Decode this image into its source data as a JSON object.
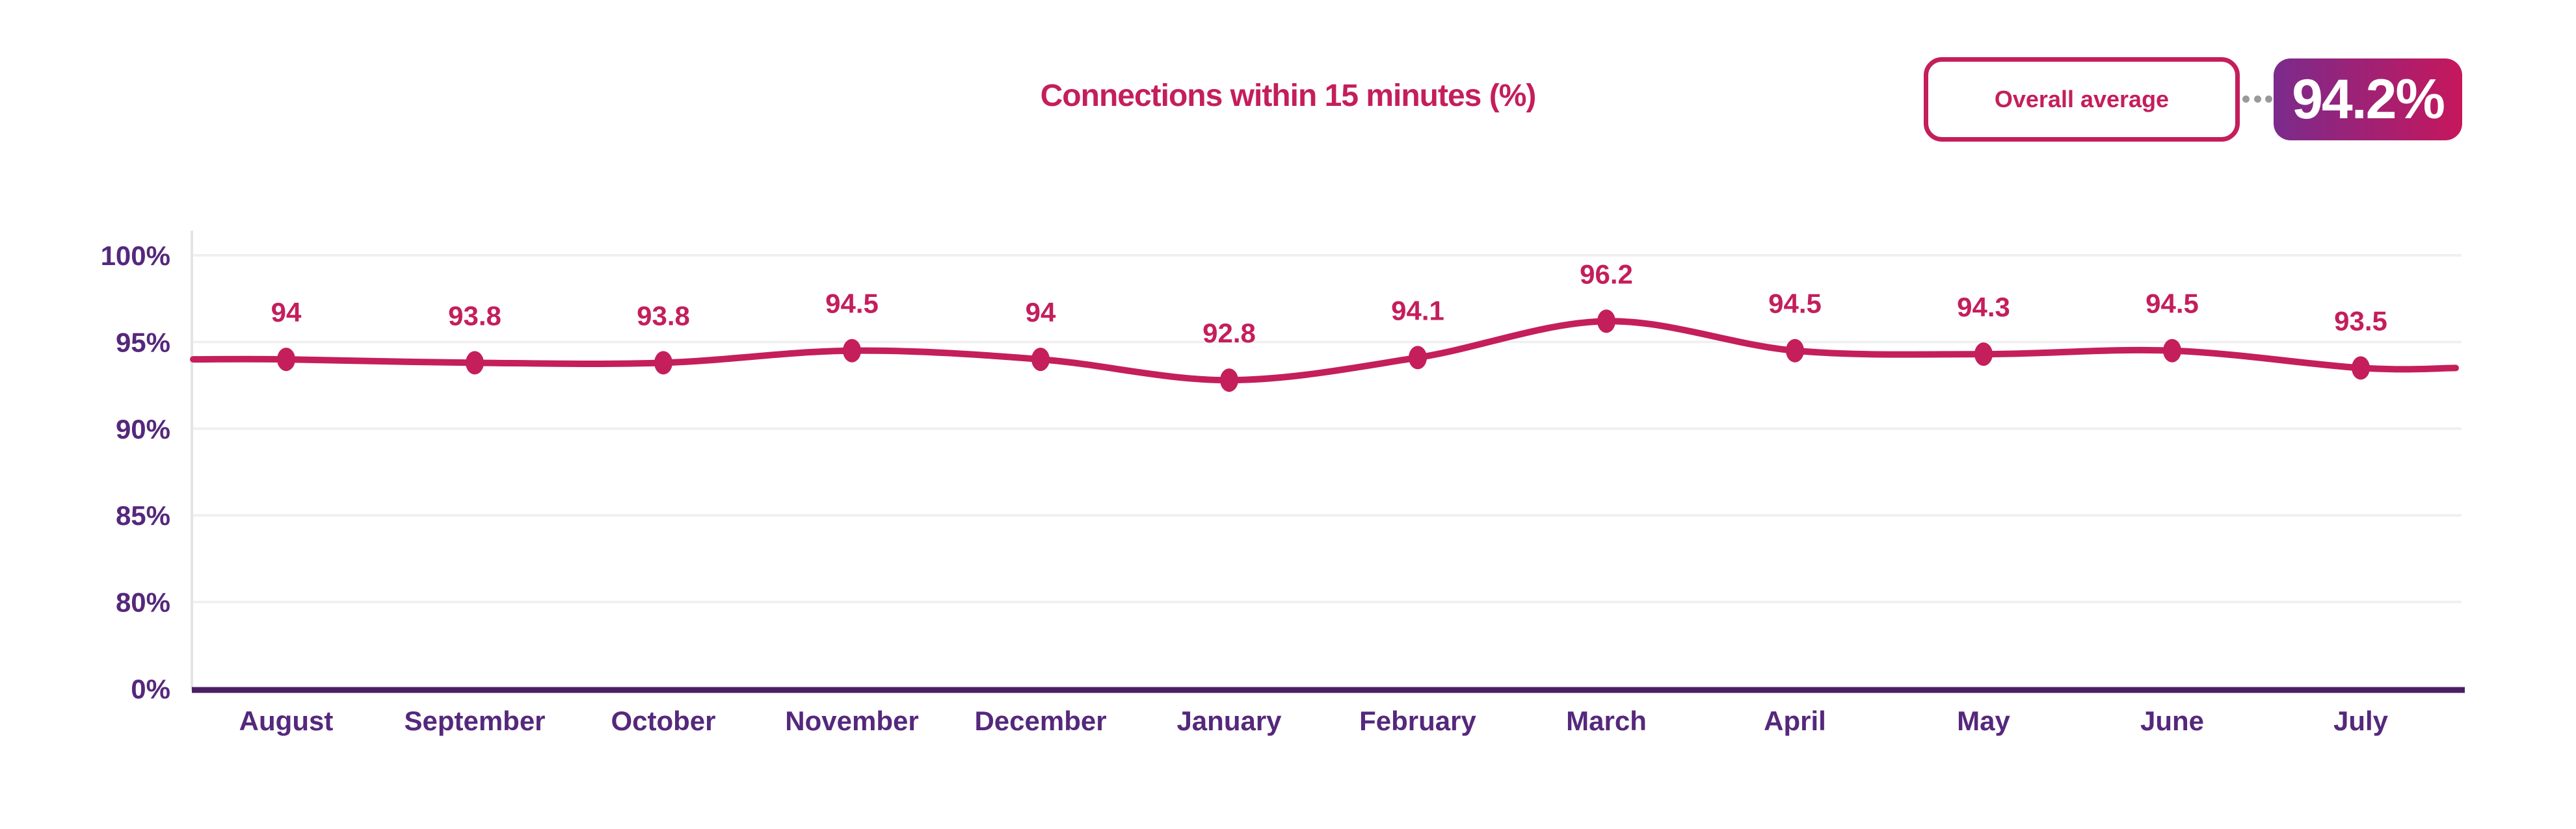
{
  "header": {
    "title": "Connections within 15 minutes (%)"
  },
  "legend": {
    "label": "Overall average",
    "value": "94.2%",
    "box_border_color": "#C41E5B",
    "box_text_color": "#C41E5B",
    "badge_gradient_start": "#7B2B8C",
    "badge_gradient_end": "#C6175C",
    "connector_dot_color": "#9a9a9a"
  },
  "chart_data": {
    "type": "line",
    "title": "Connections within 15 minutes (%)",
    "categories": [
      "August",
      "September",
      "October",
      "November",
      "December",
      "January",
      "February",
      "March",
      "April",
      "May",
      "June",
      "July"
    ],
    "series": [
      {
        "name": "Connections within 15 minutes (%)",
        "values": [
          94,
          93.8,
          93.8,
          94.5,
          94,
          92.8,
          94.1,
          96.2,
          94.5,
          94.3,
          94.5,
          93.5
        ]
      }
    ],
    "data_labels": [
      "94",
      "93.8",
      "93.8",
      "94.5",
      "94",
      "92.8",
      "94.1",
      "96.2",
      "94.5",
      "94.3",
      "94.5",
      "93.5"
    ],
    "overall_average": 94.2,
    "y_ticks": [
      {
        "label": "100%",
        "value": 100
      },
      {
        "label": "95%",
        "value": 95
      },
      {
        "label": "90%",
        "value": 90
      },
      {
        "label": "85%",
        "value": 85
      },
      {
        "label": "80%",
        "value": 80
      },
      {
        "label": "0%",
        "value": 0
      }
    ],
    "y_axis_note": "broken scale: ticks 0,80,85,90,95,100 equally spaced",
    "xlabel": "",
    "ylabel": "",
    "grid": true,
    "legend_position": "none",
    "line_color": "#C41E5B",
    "marker_color": "#C41E5B",
    "data_label_color": "#C41E5B",
    "title_color": "#C41E5B",
    "axis_label_color": "#55287C",
    "axis_line_color": "#4A1E63",
    "grid_color": "#F0F0F0",
    "edge_line_color": "#E4E4E4"
  }
}
